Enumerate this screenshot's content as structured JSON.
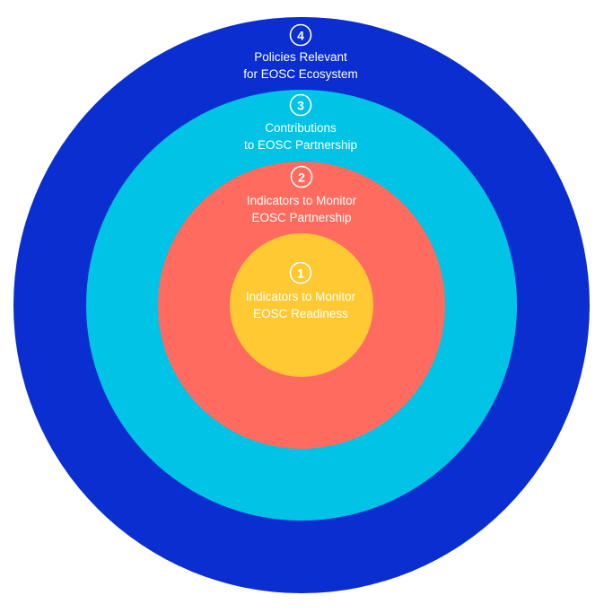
{
  "rings": [
    {
      "id": "ring-4",
      "number": "4",
      "line1": "Policies Relevant",
      "line2": "for EOSC Ecosystem",
      "color": "#0a2ecf"
    },
    {
      "id": "ring-3",
      "number": "3",
      "line1": "Contributions",
      "line2": "to EOSC Partnership",
      "color": "#00c3e6"
    },
    {
      "id": "ring-2",
      "number": "2",
      "line1": "Indicators to Monitor",
      "line2": "EOSC Partnership",
      "color": "#ff6b5e"
    },
    {
      "id": "ring-1",
      "number": "1",
      "line1": "Indicators to Monitor",
      "line2": "EOSC Readiness",
      "color": "#ffc933"
    }
  ]
}
